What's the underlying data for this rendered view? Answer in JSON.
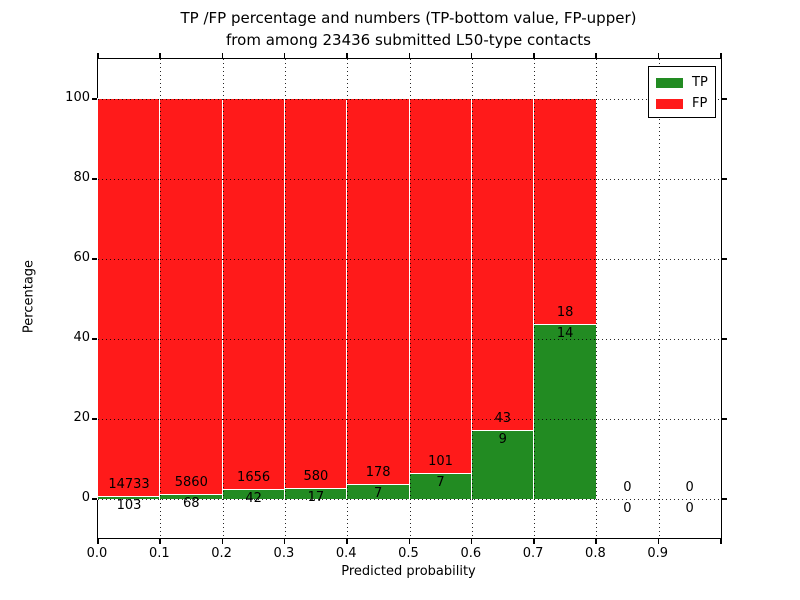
{
  "title": {
    "line1": "TP /FP percentage and numbers (TP-bottom value, FP-upper)",
    "line2": "from among 23436 submitted L50-type contacts"
  },
  "axes": {
    "xlabel": "Predicted probability",
    "ylabel": "Percentage",
    "xtick_labels": [
      "0.0",
      "0.1",
      "0.2",
      "0.3",
      "0.4",
      "0.5",
      "0.6",
      "0.7",
      "0.8",
      "0.9"
    ],
    "ytick_labels": [
      "0",
      "20",
      "40",
      "60",
      "80",
      "100"
    ],
    "yticks": [
      0,
      20,
      40,
      60,
      80,
      100
    ],
    "xlim": [
      0.0,
      1.0
    ],
    "ylim": [
      -10,
      110
    ],
    "grid_style": "dotted"
  },
  "legend": {
    "position": "upper right",
    "items": [
      {
        "label": "TP",
        "color": "#228b22"
      },
      {
        "label": "FP",
        "color": "#ff1a1a"
      }
    ]
  },
  "colors": {
    "tp_green": "#228b22",
    "fp_red": "#ff1a1a",
    "bar_edge": "#ffffff",
    "grid": "#000000"
  },
  "chart_data": {
    "type": "bar",
    "stacked": true,
    "normalized_to_percent": true,
    "total_contacts": 23436,
    "title": "TP /FP percentage and numbers (TP-bottom value, FP-upper) from among 23436 submitted L50-type contacts",
    "xlabel": "Predicted probability",
    "ylabel": "Percentage",
    "bin_edges": [
      0.0,
      0.1,
      0.2,
      0.3,
      0.4,
      0.5,
      0.6,
      0.7,
      0.8,
      0.9,
      1.0
    ],
    "bin_centers": [
      0.05,
      0.15,
      0.25,
      0.35,
      0.45,
      0.55,
      0.65,
      0.75,
      0.85,
      0.95
    ],
    "series": [
      {
        "name": "TP",
        "color": "#228b22",
        "counts": [
          103,
          68,
          42,
          17,
          7,
          7,
          9,
          14,
          0,
          0
        ],
        "percent": [
          0.69,
          1.15,
          2.47,
          2.85,
          3.78,
          6.48,
          17.31,
          43.75,
          0,
          0
        ]
      },
      {
        "name": "FP",
        "color": "#ff1a1a",
        "counts": [
          14733,
          5860,
          1656,
          580,
          178,
          101,
          43,
          18,
          0,
          0
        ],
        "percent": [
          99.31,
          98.85,
          97.53,
          97.15,
          96.22,
          93.52,
          82.69,
          56.25,
          0,
          0
        ]
      }
    ],
    "ylim": [
      -10,
      110
    ],
    "grid": true,
    "legend_position": "upper right"
  }
}
